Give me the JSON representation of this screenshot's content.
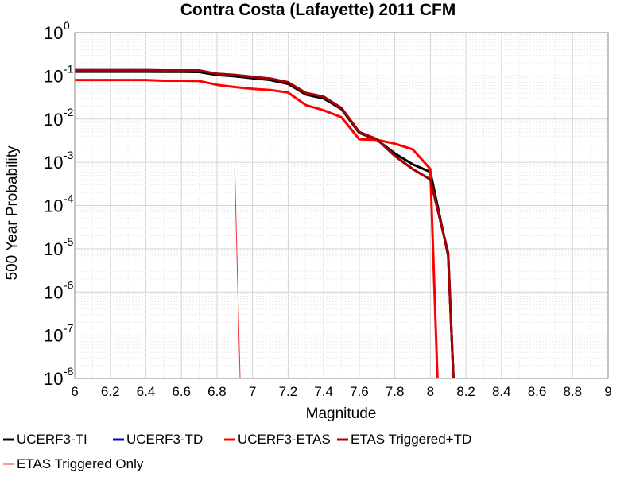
{
  "chart_data": {
    "type": "line",
    "title": "Contra Costa (Lafayette) 2011 CFM",
    "xlabel": "Magnitude",
    "ylabel": "500 Year Probability",
    "xlim": [
      6,
      9
    ],
    "ylim": [
      1e-08,
      1
    ],
    "yscale": "log",
    "grid": true,
    "legend_position": "bottom",
    "xticks": [
      "6",
      "6.2",
      "6.4",
      "6.6",
      "6.8",
      "7",
      "7.2",
      "7.4",
      "7.6",
      "7.8",
      "8",
      "8.2",
      "8.4",
      "8.6",
      "8.8",
      "9"
    ],
    "yticks": [
      {
        "base": "10",
        "exp": "0"
      },
      {
        "base": "10",
        "exp": "-1"
      },
      {
        "base": "10",
        "exp": "-2"
      },
      {
        "base": "10",
        "exp": "-3"
      },
      {
        "base": "10",
        "exp": "-4"
      },
      {
        "base": "10",
        "exp": "-5"
      },
      {
        "base": "10",
        "exp": "-6"
      },
      {
        "base": "10",
        "exp": "-7"
      },
      {
        "base": "10",
        "exp": "-8"
      }
    ],
    "series": [
      {
        "name": "UCERF3-TI",
        "color": "#000000",
        "width": 3,
        "x": [
          6.0,
          6.1,
          6.2,
          6.3,
          6.4,
          6.5,
          6.6,
          6.7,
          6.8,
          6.9,
          7.0,
          7.1,
          7.2,
          7.3,
          7.4,
          7.5,
          7.6,
          7.7,
          7.8,
          7.9,
          8.0,
          8.1,
          8.13
        ],
        "y": [
          0.125,
          0.125,
          0.125,
          0.125,
          0.125,
          0.124,
          0.124,
          0.123,
          0.105,
          0.098,
          0.088,
          0.08,
          0.065,
          0.037,
          0.03,
          0.017,
          0.0048,
          0.0033,
          0.0016,
          0.0009,
          0.0006,
          7e-06,
          1e-08
        ]
      },
      {
        "name": "UCERF3-TD",
        "color": "#0000cc",
        "width": 3,
        "x": [
          6.0,
          6.1,
          6.2,
          6.3,
          6.4,
          6.5,
          6.6,
          6.7,
          6.8,
          6.9,
          7.0,
          7.1,
          7.2,
          7.3,
          7.4,
          7.5,
          7.6,
          7.7,
          7.8,
          7.9,
          8.0,
          8.1,
          8.13
        ],
        "y": [
          0.135,
          0.135,
          0.135,
          0.135,
          0.135,
          0.134,
          0.134,
          0.133,
          0.112,
          0.105,
          0.095,
          0.086,
          0.071,
          0.04,
          0.033,
          0.018,
          0.005,
          0.0034,
          0.0014,
          0.0007,
          0.0004,
          8e-06,
          1e-08
        ]
      },
      {
        "name": "UCERF3-ETAS",
        "color": "#ff0000",
        "width": 3,
        "x": [
          6.0,
          6.1,
          6.2,
          6.3,
          6.4,
          6.5,
          6.6,
          6.7,
          6.8,
          6.9,
          7.0,
          7.1,
          7.2,
          7.3,
          7.4,
          7.5,
          7.6,
          7.7,
          7.8,
          7.9,
          8.0,
          8.04
        ],
        "y": [
          0.08,
          0.08,
          0.08,
          0.08,
          0.08,
          0.077,
          0.077,
          0.076,
          0.062,
          0.055,
          0.05,
          0.047,
          0.041,
          0.021,
          0.016,
          0.011,
          0.0034,
          0.0033,
          0.0027,
          0.002,
          0.0007,
          1e-08
        ]
      },
      {
        "name": "ETAS Triggered+TD",
        "color": "#aa0000",
        "width": 3,
        "x": [
          6.0,
          6.1,
          6.2,
          6.3,
          6.4,
          6.5,
          6.6,
          6.7,
          6.8,
          6.9,
          7.0,
          7.1,
          7.2,
          7.3,
          7.4,
          7.5,
          7.6,
          7.7,
          7.8,
          7.9,
          8.0,
          8.1,
          8.13
        ],
        "y": [
          0.135,
          0.135,
          0.135,
          0.135,
          0.135,
          0.134,
          0.134,
          0.133,
          0.112,
          0.105,
          0.095,
          0.086,
          0.071,
          0.04,
          0.033,
          0.018,
          0.005,
          0.0034,
          0.0014,
          0.0007,
          0.0004,
          8e-06,
          1e-08
        ]
      },
      {
        "name": "ETAS Triggered Only",
        "color": "#ee3333",
        "width": 1,
        "x": [
          6.0,
          6.1,
          6.2,
          6.3,
          6.4,
          6.5,
          6.6,
          6.7,
          6.8,
          6.9,
          6.93
        ],
        "y": [
          0.0007,
          0.0007,
          0.0007,
          0.0007,
          0.0007,
          0.0007,
          0.0007,
          0.0007,
          0.0007,
          0.0007,
          1e-08
        ]
      }
    ]
  }
}
